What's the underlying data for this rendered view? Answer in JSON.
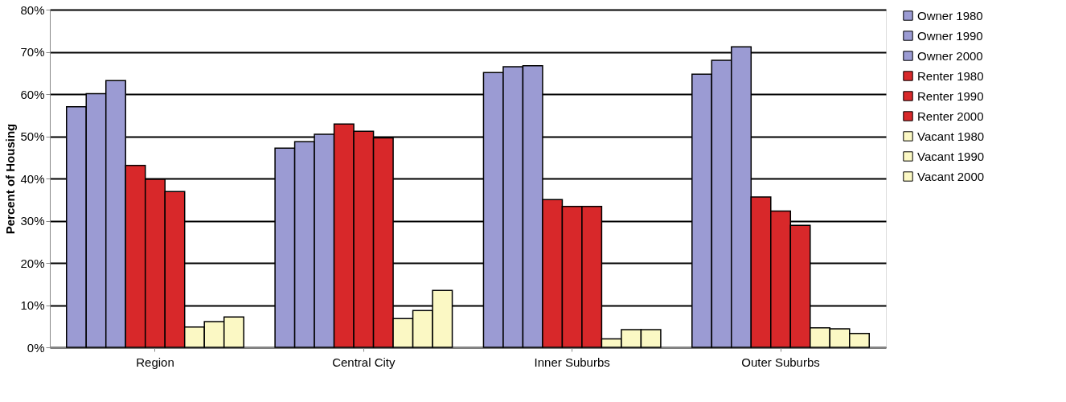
{
  "chart_data": {
    "type": "bar",
    "ylabel": "Percent of Housing",
    "categories": [
      "Region",
      "Central City",
      "Inner Suburbs",
      "Outer Suburbs"
    ],
    "series": [
      {
        "name": "Owner 1980",
        "color": "#9b9bd3",
        "values": [
          57.0,
          47.2,
          65.1,
          64.7
        ]
      },
      {
        "name": "Owner 1990",
        "color": "#9b9bd3",
        "values": [
          60.1,
          48.7,
          66.5,
          68.0
        ]
      },
      {
        "name": "Owner 2000",
        "color": "#9b9bd3",
        "values": [
          63.2,
          50.5,
          66.7,
          71.2
        ]
      },
      {
        "name": "Renter 1980",
        "color": "#d8282a",
        "values": [
          43.1,
          52.9,
          35.0,
          35.6
        ]
      },
      {
        "name": "Renter 1990",
        "color": "#d8282a",
        "values": [
          39.8,
          51.2,
          33.4,
          32.3
        ]
      },
      {
        "name": "Renter 2000",
        "color": "#d8282a",
        "values": [
          36.9,
          49.6,
          33.4,
          28.9
        ]
      },
      {
        "name": "Vacant 1980",
        "color": "#fbf8c4",
        "values": [
          4.8,
          6.8,
          2.0,
          4.6
        ]
      },
      {
        "name": "Vacant 1990",
        "color": "#fbf8c4",
        "values": [
          6.1,
          8.7,
          4.2,
          4.4
        ]
      },
      {
        "name": "Vacant 2000",
        "color": "#fbf8c4",
        "values": [
          7.2,
          13.5,
          4.2,
          3.3
        ]
      }
    ],
    "ylim": [
      0,
      80
    ],
    "yticks": [
      {
        "value": 0,
        "label": "0%"
      },
      {
        "value": 10,
        "label": "10%"
      },
      {
        "value": 20,
        "label": "20%"
      },
      {
        "value": 30,
        "label": "30%"
      },
      {
        "value": 40,
        "label": "40%"
      },
      {
        "value": 50,
        "label": "50%"
      },
      {
        "value": 60,
        "label": "60%"
      },
      {
        "value": 70,
        "label": "70%"
      },
      {
        "value": 80,
        "label": "80%"
      }
    ],
    "grid": "y",
    "legend": "right"
  }
}
